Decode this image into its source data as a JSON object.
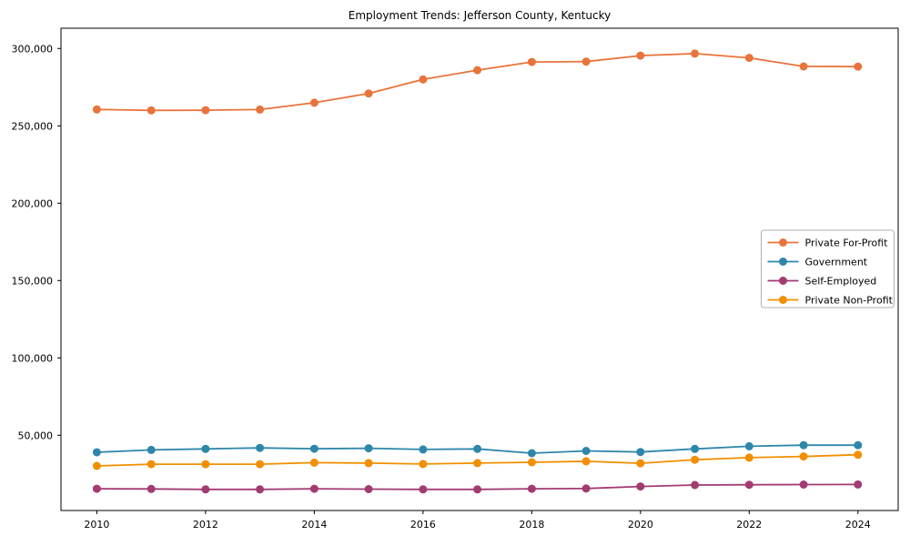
{
  "figure": {
    "background": "#ffffff",
    "spine_color": "#000000",
    "tick_color": "#000000",
    "legend_border_color": "#b0b0b0",
    "legend_background": "#ffffff"
  },
  "chart_data": {
    "type": "line",
    "title": "Employment Trends: Jefferson County, Kentucky",
    "xlabel": "",
    "ylabel": "",
    "grid": false,
    "marker": "circle",
    "legend_position": "center right",
    "x": [
      2010,
      2011,
      2012,
      2013,
      2014,
      2015,
      2016,
      2017,
      2018,
      2019,
      2020,
      2021,
      2022,
      2023,
      2024
    ],
    "series": [
      {
        "name": "Private For-Profit",
        "color": "#e8743b",
        "values": [
          260600,
          260000,
          260100,
          260500,
          264900,
          270900,
          280000,
          286000,
          291300,
          291500,
          295400,
          296700,
          293900,
          288400,
          288300
        ]
      },
      {
        "name": "Government",
        "color": "#2e86ab",
        "values": [
          39000,
          40500,
          41200,
          41800,
          41300,
          41600,
          40800,
          41200,
          38400,
          39900,
          39200,
          41200,
          42900,
          43600,
          43600
        ]
      },
      {
        "name": "Self-Employed",
        "color": "#a23b72",
        "values": [
          15400,
          15300,
          15000,
          15000,
          15400,
          15200,
          15000,
          15000,
          15400,
          15600,
          16900,
          17800,
          18000,
          18100,
          18200
        ]
      },
      {
        "name": "Private Non-Profit",
        "color": "#f18f01",
        "values": [
          30200,
          31300,
          31300,
          31300,
          32300,
          32000,
          31400,
          32000,
          32500,
          33200,
          31900,
          34200,
          35500,
          36300,
          37400
        ]
      }
    ],
    "xlim": [
      2009.34,
      2024.74
    ],
    "ylim": [
      1350,
      313100
    ],
    "xticks": [
      2010,
      2012,
      2014,
      2016,
      2018,
      2020,
      2022,
      2024
    ],
    "yticks": [
      50000,
      100000,
      150000,
      200000,
      250000,
      300000
    ],
    "ytick_format": "comma"
  }
}
